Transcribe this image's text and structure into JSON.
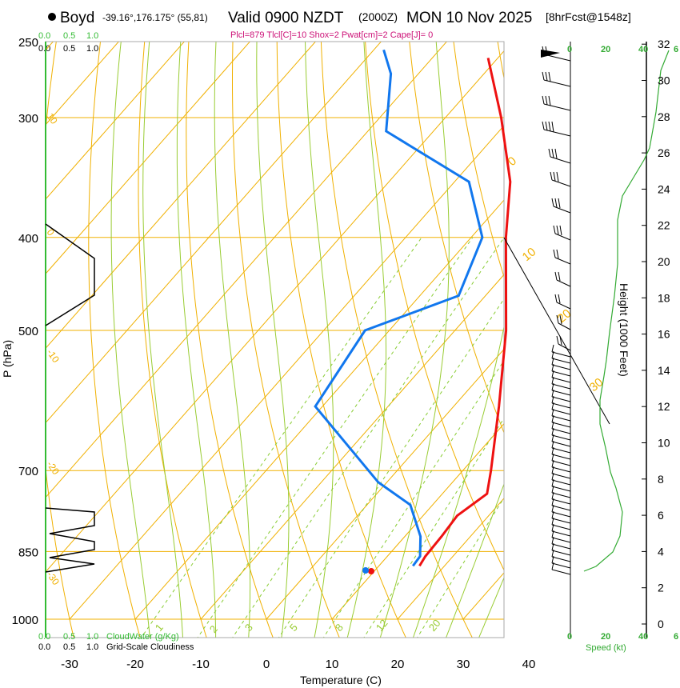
{
  "header": {
    "station": "Boyd",
    "location": "-39.16°,176.175° (55,81)",
    "valid": "Valid 0900 NZDT",
    "utc": "(2000Z)",
    "date": "MON 10 Nov 2025",
    "forecast": "[8hrFcst@1548z]",
    "params": "Plcl=879 Tlcl[C]=10 Shox=2 Pwat[cm]=2 Cape[J]= 0"
  },
  "cloud": {
    "water_ticks": [
      "0.0",
      "0.5",
      "1.0"
    ],
    "cover_ticks": [
      "0.0",
      "0.5",
      "1.0"
    ],
    "water_label": "CloudWater (g/Kg)",
    "cover_label": "Grid-Scale Cloudiness"
  },
  "speed": {
    "ticks": [
      "0",
      "20",
      "40",
      "6"
    ],
    "label": "Speed (kt)"
  },
  "colors": {
    "isotherm": "#f0b000",
    "dry_adiabat": "#f0b000",
    "moist_adiabat": "#99cc33",
    "mixing_ratio": "#88cc33",
    "temperature": "#ee1111",
    "dewpoint": "#1177ee",
    "cloud_axis": "#33bb33",
    "speed": "#33aa33",
    "params": "#cc1177"
  },
  "chart_data": {
    "type": "skew-t",
    "title": "Boyd Valid 0900 NZDT MON 10 Nov 2025",
    "xlabel": "Temperature (C)",
    "ylabel": "P (hPa)",
    "y2label": "Height (1000 Feet)",
    "x_ticks": [
      -30,
      -20,
      -10,
      0,
      10,
      20,
      30,
      40
    ],
    "pressure_ticks": [
      250,
      300,
      400,
      500,
      700,
      850,
      1000
    ],
    "height_ticks": [
      0,
      2,
      4,
      6,
      8,
      10,
      12,
      14,
      16,
      18,
      20,
      22,
      24,
      26,
      28,
      30,
      32
    ],
    "isotherm_labels": [
      10,
      0,
      -10,
      -20,
      -30
    ],
    "mixing_ratio_labels": [
      1,
      2,
      3,
      5,
      8,
      12,
      20
    ],
    "dry_adiabat_labels": [
      0,
      10,
      20,
      30
    ],
    "temperature_profile": [
      {
        "p": 880,
        "t": 16.2
      },
      {
        "p": 860,
        "t": 15.8
      },
      {
        "p": 820,
        "t": 15.6
      },
      {
        "p": 780,
        "t": 15.2
      },
      {
        "p": 740,
        "t": 16.8
      },
      {
        "p": 700,
        "t": 14.3
      },
      {
        "p": 600,
        "t": 6.9
      },
      {
        "p": 500,
        "t": -2.2
      },
      {
        "p": 400,
        "t": -14.7
      },
      {
        "p": 350,
        "t": -21.5
      },
      {
        "p": 300,
        "t": -31.5
      },
      {
        "p": 260,
        "t": -41.5
      }
    ],
    "dewpoint_profile": [
      {
        "p": 880,
        "t": 15.2
      },
      {
        "p": 860,
        "t": 15.0
      },
      {
        "p": 820,
        "t": 12.4
      },
      {
        "p": 760,
        "t": 6.6
      },
      {
        "p": 720,
        "t": -1.3
      },
      {
        "p": 600,
        "t": -21.1
      },
      {
        "p": 500,
        "t": -23.7
      },
      {
        "p": 460,
        "t": -14.1
      },
      {
        "p": 400,
        "t": -18.3
      },
      {
        "p": 350,
        "t": -27.8
      },
      {
        "p": 310,
        "t": -47.2
      },
      {
        "p": 270,
        "t": -54.2
      },
      {
        "p": 255,
        "t": -58.5
      }
    ]
  }
}
